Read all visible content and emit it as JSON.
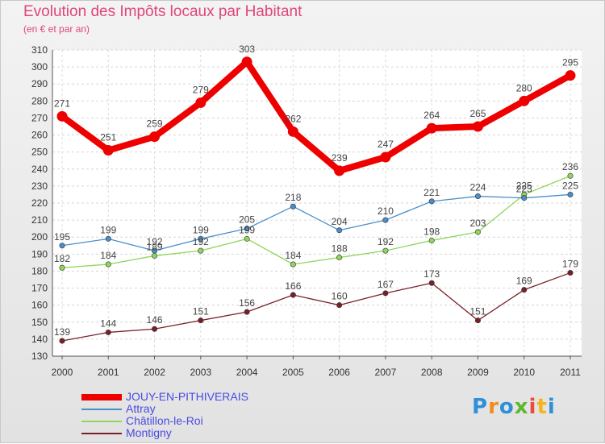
{
  "title": "Evolution des Impôts locaux par Habitant",
  "subtitle": "(en € et par an)",
  "logo": {
    "text": "Proxiti",
    "colors": [
      "#2f8fd8",
      "#f28c1e",
      "#2f8fd8",
      "#5cb82f",
      "#e94b3c",
      "#f5b51b",
      "#2f8fd8"
    ]
  },
  "chart_data": {
    "type": "line",
    "title": "Evolution des Impôts locaux par Habitant",
    "subtitle": "(en € et par an)",
    "categories": [
      "2000",
      "2001",
      "2002",
      "2003",
      "2004",
      "2005",
      "2006",
      "2007",
      "2008",
      "2009",
      "2010",
      "2011"
    ],
    "ylim": [
      130,
      310
    ],
    "yticks": [
      130,
      140,
      150,
      160,
      170,
      180,
      190,
      200,
      210,
      220,
      230,
      240,
      250,
      260,
      270,
      280,
      290,
      300,
      310
    ],
    "grid": "horizontal",
    "legend_position": "bottom-left",
    "series": [
      {
        "name": "JOUY-EN-PITHIVERAIS",
        "color": "#ee0000",
        "values": [
          271,
          251,
          259,
          279,
          303,
          262,
          239,
          247,
          264,
          265,
          280,
          295
        ]
      },
      {
        "name": "Attray",
        "color": "#4a8ec9",
        "values": [
          195,
          199,
          192,
          199,
          205,
          218,
          204,
          210,
          221,
          224,
          223,
          225
        ]
      },
      {
        "name": "Châtillon-le-Roi",
        "color": "#8fd65a",
        "values": [
          182,
          184,
          189,
          192,
          199,
          184,
          188,
          192,
          198,
          203,
          225,
          236
        ]
      },
      {
        "name": "Montigny",
        "color": "#7a1f28",
        "values": [
          139,
          144,
          146,
          151,
          156,
          166,
          160,
          167,
          173,
          151,
          169,
          179
        ]
      }
    ]
  }
}
